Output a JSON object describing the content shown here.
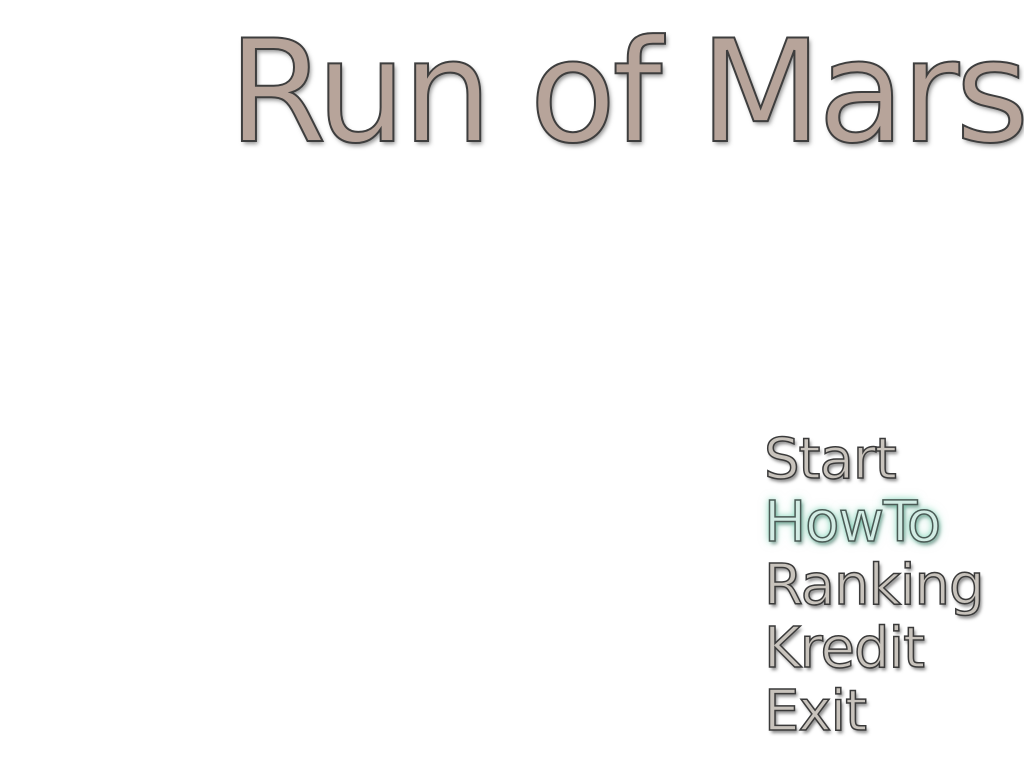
{
  "title": "Run of Mars",
  "menu": {
    "selected_index": 1,
    "items": [
      {
        "label": "Start"
      },
      {
        "label": "HowTo"
      },
      {
        "label": "Ranking"
      },
      {
        "label": "Kredit"
      },
      {
        "label": "Exit"
      }
    ]
  },
  "colors": {
    "background": "#ffffff",
    "title_fill": "#b7a49a",
    "menu_fill": "#c8c3bc",
    "selected_glow": "#78d2b4",
    "outline": "#3e3e3e"
  }
}
